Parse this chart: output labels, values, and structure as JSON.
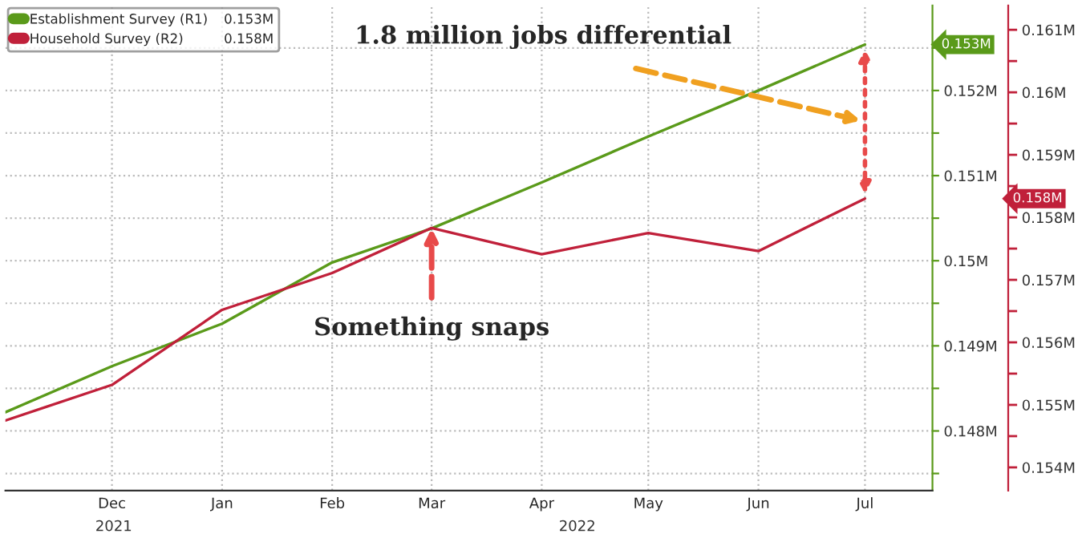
{
  "chart_data": {
    "type": "line",
    "x": [
      "2021-11",
      "2021-12",
      "2022-01",
      "2022-02",
      "2022-03",
      "2022-04",
      "2022-05",
      "2022-06",
      "2022-07"
    ],
    "series": [
      {
        "name": "Establishment Survey (R1)",
        "color": "#5a9a1a",
        "values": [
          0.14822,
          0.14876,
          0.14926,
          0.14998,
          0.15038,
          0.15092,
          0.15146,
          0.152,
          0.15254
        ]
      },
      {
        "name": "Household Survey (R2)",
        "color": "#c0203a",
        "axis": "y2",
        "values": [
          0.15475,
          0.15532,
          0.15652,
          0.15711,
          0.15783,
          0.15741,
          0.15775,
          0.15746,
          0.1583
        ]
      }
    ],
    "xlim": [
      "2021-11-01",
      "2022-07-20"
    ],
    "xticks": [
      {
        "value": "2021-12-01",
        "label": "Dec"
      },
      {
        "value": "2022-01-01",
        "label": "Jan"
      },
      {
        "value": "2022-02-01",
        "label": "Feb"
      },
      {
        "value": "2022-03-01",
        "label": "Mar"
      },
      {
        "value": "2022-04-01",
        "label": "Apr"
      },
      {
        "value": "2022-05-01",
        "label": "May"
      },
      {
        "value": "2022-06-01",
        "label": "Jun"
      },
      {
        "value": "2022-07-01",
        "label": "Jul"
      }
    ],
    "ylim": [
      0.1473,
      0.153
    ],
    "yticks": [
      {
        "value": 0.1475,
        "label": null
      },
      {
        "value": 0.148,
        "label": "0.148M"
      },
      {
        "value": 0.1485,
        "label": null
      },
      {
        "value": 0.149,
        "label": "0.149M"
      },
      {
        "value": 0.1495,
        "label": null
      },
      {
        "value": 0.15,
        "label": "0.15M"
      },
      {
        "value": 0.1505,
        "label": null
      },
      {
        "value": 0.151,
        "label": "0.151M"
      },
      {
        "value": 0.1515,
        "label": null
      },
      {
        "value": 0.152,
        "label": "0.152M"
      },
      {
        "value": 0.1525,
        "label": null
      }
    ],
    "y2lim": [
      0.15363,
      0.16139
    ],
    "y2ticks": [
      {
        "value": 0.154,
        "label": "0.154M"
      },
      {
        "value": 0.155,
        "label": "0.155M"
      },
      {
        "value": 0.156,
        "label": "0.156M"
      },
      {
        "value": 0.157,
        "label": "0.157M"
      },
      {
        "value": 0.158,
        "label": "0.158M"
      },
      {
        "value": 0.159,
        "label": "0.159M"
      },
      {
        "value": 0.16,
        "label": "0.16M"
      },
      {
        "value": 0.161,
        "label": "0.161M"
      }
    ],
    "annotations": [
      "1.8 million jobs differential",
      {
        "text": "Something snaps",
        "x": "2022-03",
        "y": 0.15038
      },
      "2021",
      "2022",
      "0.153M",
      "0.158M"
    ],
    "grid": true,
    "legend": "top left",
    "marker": "none",
    "line_style": "solid"
  }
}
